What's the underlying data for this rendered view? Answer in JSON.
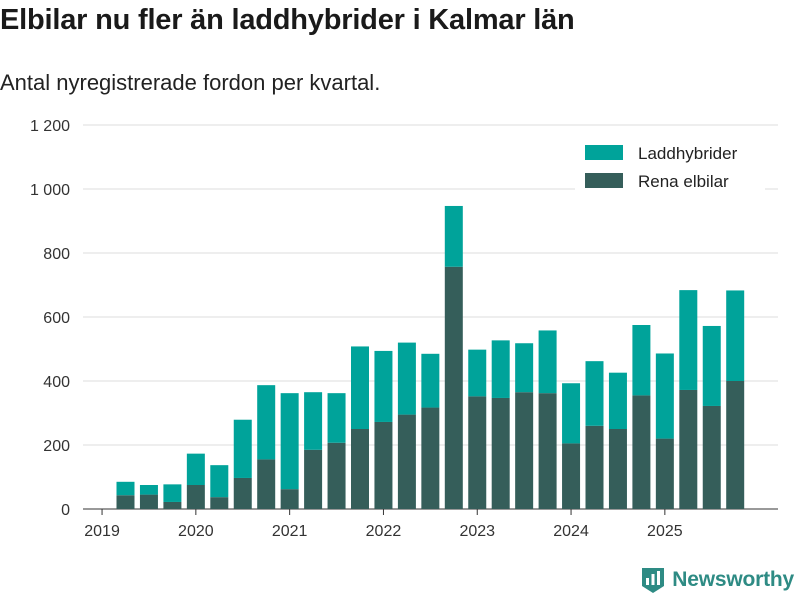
{
  "title": "Elbilar nu fler än laddhybrider i Kalmar län",
  "subtitle": "Antal nyregistrerade fordon per kvartal.",
  "brand": {
    "name": "Newsworthy",
    "icon": "newsworthy-logo-icon"
  },
  "colors": {
    "laddhybrider": "#00a39a",
    "elbilar": "#355e5a",
    "grid": "#dddddd",
    "axis": "#333333",
    "brand": "#2e8b84"
  },
  "chart_data": {
    "type": "bar",
    "stacked": true,
    "title": "Elbilar nu fler än laddhybrider i Kalmar län",
    "subtitle": "Antal nyregistrerade fordon per kvartal.",
    "xlabel": "",
    "ylabel": "",
    "ylim": [
      0,
      1200
    ],
    "yticks": [
      0,
      200,
      400,
      600,
      800,
      1000,
      1200
    ],
    "ytick_labels": [
      "0",
      "200",
      "400",
      "600",
      "800",
      "1 000",
      "1 200"
    ],
    "xticks": [
      "2019",
      "2020",
      "2021",
      "2022",
      "2023",
      "2024",
      "2025"
    ],
    "grid": true,
    "legend_position": "top-right",
    "categories": [
      "2019 Q2",
      "2019 Q3",
      "2019 Q4",
      "2020 Q1",
      "2020 Q2",
      "2020 Q3",
      "2020 Q4",
      "2021 Q1",
      "2021 Q2",
      "2021 Q3",
      "2021 Q4",
      "2022 Q1",
      "2022 Q2",
      "2022 Q3",
      "2022 Q4",
      "2023 Q1",
      "2023 Q2",
      "2023 Q3",
      "2023 Q4",
      "2024 Q1",
      "2024 Q2",
      "2024 Q3",
      "2024 Q4",
      "2025 Q1",
      "2025 Q2",
      "2025 Q3",
      "2025 Q4"
    ],
    "series": [
      {
        "name": "Rena elbilar",
        "values": [
          43,
          45,
          22,
          75,
          37,
          97,
          155,
          62,
          185,
          207,
          250,
          272,
          295,
          317,
          757,
          352,
          347,
          365,
          362,
          205,
          260,
          250,
          355,
          220,
          372,
          322,
          400
        ]
      },
      {
        "name": "Laddhybrider",
        "values": [
          42,
          30,
          55,
          98,
          100,
          182,
          232,
          300,
          180,
          155,
          258,
          222,
          225,
          168,
          190,
          146,
          180,
          153,
          196,
          188,
          202,
          176,
          220,
          266,
          312,
          250,
          283
        ]
      }
    ]
  }
}
